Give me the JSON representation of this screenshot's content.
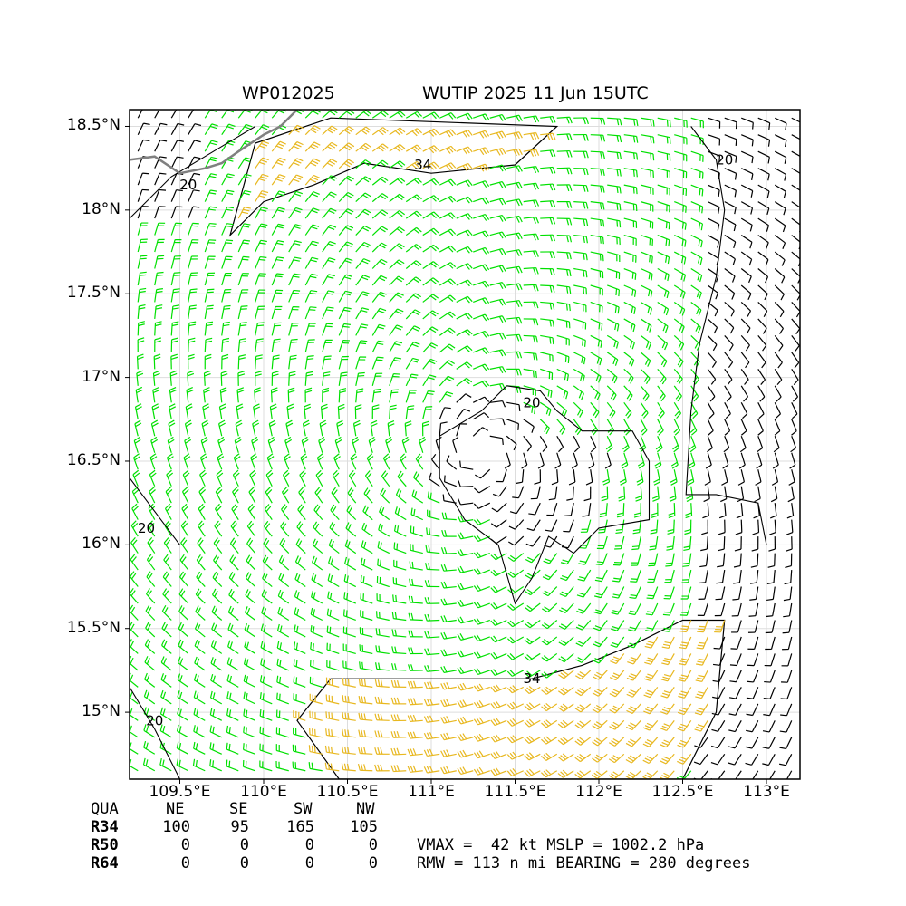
{
  "header": {
    "storm_id": "WP012025",
    "storm_title": "WUTIP 2025 11 Jun 15UTC"
  },
  "map": {
    "lon_range": [
      109.2,
      113.2
    ],
    "lat_range": [
      14.6,
      18.6
    ],
    "lat_ticks": [
      "18.5°N",
      "18°N",
      "17.5°N",
      "17°N",
      "16.5°N",
      "16°N",
      "15.5°N",
      "15°N"
    ],
    "lat_tick_values": [
      18.5,
      18.0,
      17.5,
      17.0,
      16.5,
      16.0,
      15.5,
      15.0
    ],
    "lon_ticks": [
      "109.5°E",
      "110°E",
      "110.5°E",
      "111°E",
      "111.5°E",
      "112°E",
      "112.5°E",
      "113°E"
    ],
    "lon_tick_values": [
      109.5,
      110.0,
      110.5,
      111.0,
      111.5,
      112.0,
      112.5,
      113.0
    ],
    "center": {
      "lon": 111.3,
      "lat": 16.55
    },
    "contour_labels": [
      {
        "text": "34",
        "lon": 110.95,
        "lat": 18.27
      },
      {
        "text": "34",
        "lon": 111.6,
        "lat": 15.2
      },
      {
        "text": "20",
        "lon": 111.6,
        "lat": 16.85
      },
      {
        "text": "20",
        "lon": 112.75,
        "lat": 18.3
      },
      {
        "text": "20",
        "lon": 109.55,
        "lat": 18.15
      },
      {
        "text": "20",
        "lon": 109.3,
        "lat": 16.1
      },
      {
        "text": "20",
        "lon": 109.35,
        "lat": 14.95
      }
    ],
    "colors": {
      "weak_wind": "#000000",
      "moderate_wind": "#00e000",
      "gale_wind": "#e8b820",
      "coastline": "#808080"
    }
  },
  "wind_radii": {
    "columns": [
      "QUA",
      "NE",
      "SE",
      "SW",
      "NW"
    ],
    "rows": [
      {
        "label": "R34",
        "values": [
          "100",
          "95",
          "165",
          "105"
        ]
      },
      {
        "label": "R50",
        "values": [
          "0",
          "0",
          "0",
          "0"
        ]
      },
      {
        "label": "R64",
        "values": [
          "0",
          "0",
          "0",
          "0"
        ]
      }
    ]
  },
  "stats": {
    "line1": "VMAX =  42 kt MSLP = 1002.2 hPa",
    "line2": "RMW = 113 n mi BEARING = 280 degrees"
  }
}
